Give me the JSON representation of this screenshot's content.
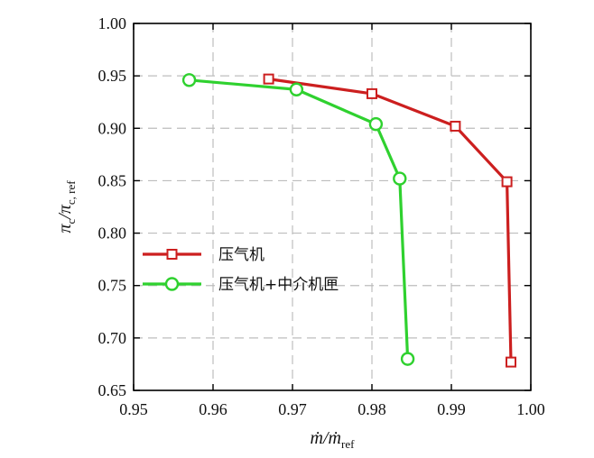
{
  "chart_data": {
    "type": "line",
    "title": "",
    "xlabel": {
      "main": "ṁ/ṁ",
      "sub": "ref"
    },
    "ylabel": {
      "main": "π",
      "sub1": "c",
      "mid": "/π",
      "sub2": "c, ref"
    },
    "xlim": [
      0.95,
      1.0
    ],
    "ylim": [
      0.65,
      1.0
    ],
    "x_ticks": [
      "0.95",
      "0.96",
      "0.97",
      "0.98",
      "0.99",
      "1.00"
    ],
    "y_ticks": [
      "0.65",
      "0.70",
      "0.75",
      "0.80",
      "0.85",
      "0.90",
      "0.95",
      "1.00"
    ],
    "x_tick_values": [
      0.95,
      0.96,
      0.97,
      0.98,
      0.99,
      1.0
    ],
    "y_tick_values": [
      0.65,
      0.7,
      0.75,
      0.8,
      0.85,
      0.9,
      0.95,
      1.0
    ],
    "grid": true,
    "legend_position": "center-left",
    "series": [
      {
        "name": "压气机",
        "color": "#cc1f1f",
        "marker": "square",
        "x": [
          0.967,
          0.98,
          0.9905,
          0.997,
          0.9975
        ],
        "y": [
          0.947,
          0.933,
          0.902,
          0.849,
          0.677
        ]
      },
      {
        "name": "压气机+中介机匣",
        "color": "#2fd12f",
        "marker": "circle",
        "x": [
          0.957,
          0.9705,
          0.9805,
          0.9835,
          0.9845
        ],
        "y": [
          0.946,
          0.937,
          0.904,
          0.852,
          0.68
        ]
      }
    ]
  }
}
